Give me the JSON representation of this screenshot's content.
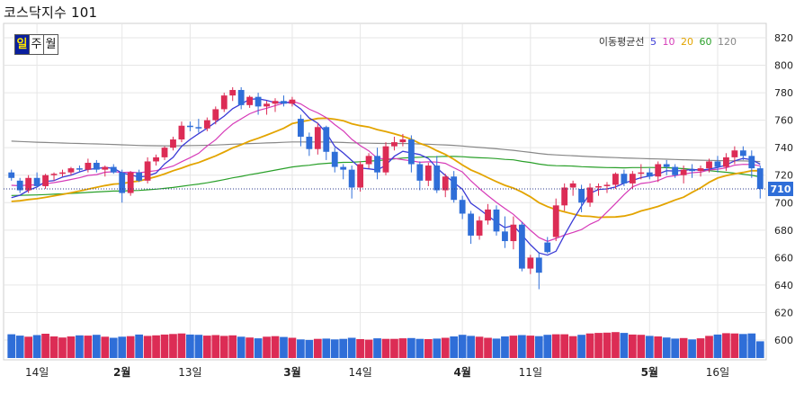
{
  "title": "코스닥지수 101",
  "tabs": [
    {
      "label": "일",
      "active": true
    },
    {
      "label": "주",
      "active": false
    },
    {
      "label": "월",
      "active": false
    }
  ],
  "legend": {
    "label": "이동평균선",
    "items": [
      {
        "name": "5",
        "color": "#3b3bd6"
      },
      {
        "name": "10",
        "color": "#d63ab8"
      },
      {
        "name": "20",
        "color": "#e3a400"
      },
      {
        "name": "60",
        "color": "#2aa02a"
      },
      {
        "name": "120",
        "color": "#888888"
      }
    ]
  },
  "colors": {
    "up": "#dc2c55",
    "down": "#2f6ed8",
    "price_tag": "#2f6ed8"
  },
  "chart_data": {
    "type": "candlestick",
    "ylim": [
      590,
      830
    ],
    "y_ticks": [
      820,
      800,
      780,
      760,
      740,
      720,
      700,
      680,
      660,
      640,
      620,
      600
    ],
    "x_tick_labels": [
      {
        "label": "14일",
        "index": 3,
        "bold": false
      },
      {
        "label": "2월",
        "index": 13,
        "bold": true
      },
      {
        "label": "13일",
        "index": 21,
        "bold": false
      },
      {
        "label": "3월",
        "index": 33,
        "bold": true
      },
      {
        "label": "14일",
        "index": 41,
        "bold": false
      },
      {
        "label": "4월",
        "index": 53,
        "bold": true
      },
      {
        "label": "11일",
        "index": 61,
        "bold": false
      },
      {
        "label": "5월",
        "index": 75,
        "bold": true
      },
      {
        "label": "16일",
        "index": 83,
        "bold": false
      }
    ],
    "current_price": 710,
    "reference_line": 710,
    "ohlc": [
      [
        722,
        724,
        716,
        718
      ],
      [
        716,
        718,
        707,
        709
      ],
      [
        709,
        720,
        707,
        718
      ],
      [
        718,
        722,
        711,
        712
      ],
      [
        712,
        721,
        710,
        720
      ],
      [
        720,
        722,
        716,
        721
      ],
      [
        721,
        724,
        719,
        722
      ],
      [
        722,
        726,
        720,
        725
      ],
      [
        725,
        727,
        722,
        724
      ],
      [
        724,
        732,
        722,
        729
      ],
      [
        729,
        731,
        722,
        724
      ],
      [
        724,
        727,
        719,
        726
      ],
      [
        726,
        728,
        721,
        722
      ],
      [
        722,
        724,
        700,
        707
      ],
      [
        707,
        723,
        705,
        722
      ],
      [
        722,
        724,
        715,
        716
      ],
      [
        716,
        733,
        714,
        730
      ],
      [
        730,
        735,
        727,
        733
      ],
      [
        733,
        741,
        731,
        740
      ],
      [
        740,
        748,
        738,
        746
      ],
      [
        746,
        759,
        744,
        756
      ],
      [
        756,
        759,
        752,
        755
      ],
      [
        755,
        761,
        751,
        754
      ],
      [
        754,
        762,
        752,
        760
      ],
      [
        760,
        770,
        757,
        768
      ],
      [
        768,
        780,
        766,
        778
      ],
      [
        778,
        784,
        774,
        782
      ],
      [
        782,
        784,
        768,
        771
      ],
      [
        771,
        778,
        769,
        777
      ],
      [
        777,
        780,
        764,
        770
      ],
      [
        770,
        774,
        764,
        772
      ],
      [
        772,
        776,
        766,
        774
      ],
      [
        774,
        778,
        770,
        772
      ],
      [
        772,
        777,
        770,
        775
      ],
      [
        761,
        764,
        741,
        748
      ],
      [
        748,
        751,
        734,
        739
      ],
      [
        739,
        758,
        735,
        755
      ],
      [
        755,
        756,
        731,
        737
      ],
      [
        737,
        740,
        722,
        726
      ],
      [
        726,
        728,
        717,
        724
      ],
      [
        724,
        727,
        703,
        711
      ],
      [
        711,
        730,
        708,
        728
      ],
      [
        728,
        736,
        725,
        734
      ],
      [
        734,
        740,
        717,
        722
      ],
      [
        722,
        744,
        720,
        741
      ],
      [
        741,
        748,
        738,
        744
      ],
      [
        744,
        750,
        741,
        746
      ],
      [
        746,
        749,
        722,
        728
      ],
      [
        728,
        730,
        709,
        716
      ],
      [
        716,
        729,
        712,
        727
      ],
      [
        727,
        734,
        707,
        709
      ],
      [
        709,
        721,
        704,
        719
      ],
      [
        719,
        723,
        700,
        702
      ],
      [
        702,
        705,
        688,
        692
      ],
      [
        692,
        694,
        670,
        676
      ],
      [
        676,
        690,
        673,
        687
      ],
      [
        687,
        699,
        684,
        695
      ],
      [
        695,
        698,
        676,
        679
      ],
      [
        679,
        690,
        667,
        672
      ],
      [
        672,
        690,
        666,
        684
      ],
      [
        684,
        686,
        650,
        652
      ],
      [
        652,
        662,
        648,
        660
      ],
      [
        660,
        664,
        637,
        649
      ],
      [
        671,
        675,
        663,
        664
      ],
      [
        675,
        703,
        672,
        698
      ],
      [
        698,
        714,
        694,
        711
      ],
      [
        711,
        716,
        705,
        714
      ],
      [
        710,
        713,
        693,
        700
      ],
      [
        700,
        714,
        697,
        711
      ],
      [
        711,
        714,
        705,
        712
      ],
      [
        712,
        715,
        707,
        713
      ],
      [
        713,
        722,
        710,
        721
      ],
      [
        721,
        724,
        712,
        714
      ],
      [
        714,
        723,
        710,
        721
      ],
      [
        721,
        728,
        717,
        722
      ],
      [
        722,
        725,
        717,
        719
      ],
      [
        719,
        730,
        715,
        728
      ],
      [
        728,
        731,
        720,
        726
      ],
      [
        726,
        728,
        718,
        720
      ],
      [
        720,
        727,
        714,
        724
      ],
      [
        724,
        728,
        718,
        723
      ],
      [
        723,
        727,
        719,
        725
      ],
      [
        725,
        732,
        722,
        730
      ],
      [
        730,
        734,
        722,
        726
      ],
      [
        726,
        736,
        723,
        733
      ],
      [
        733,
        741,
        728,
        738
      ],
      [
        738,
        741,
        731,
        734
      ],
      [
        734,
        738,
        718,
        725
      ],
      [
        725,
        727,
        703,
        710
      ]
    ],
    "volume": [
      0.88,
      0.83,
      0.79,
      0.85,
      0.9,
      0.8,
      0.76,
      0.8,
      0.84,
      0.83,
      0.86,
      0.79,
      0.75,
      0.79,
      0.81,
      0.87,
      0.82,
      0.84,
      0.87,
      0.89,
      0.91,
      0.87,
      0.86,
      0.83,
      0.85,
      0.82,
      0.84,
      0.79,
      0.76,
      0.73,
      0.79,
      0.81,
      0.78,
      0.75,
      0.69,
      0.67,
      0.71,
      0.72,
      0.69,
      0.71,
      0.75,
      0.7,
      0.68,
      0.73,
      0.71,
      0.71,
      0.73,
      0.74,
      0.71,
      0.7,
      0.72,
      0.75,
      0.8,
      0.86,
      0.82,
      0.79,
      0.75,
      0.72,
      0.8,
      0.83,
      0.85,
      0.83,
      0.81,
      0.86,
      0.88,
      0.88,
      0.81,
      0.86,
      0.91,
      0.93,
      0.94,
      0.96,
      0.93,
      0.87,
      0.86,
      0.82,
      0.8,
      0.76,
      0.72,
      0.74,
      0.69,
      0.73,
      0.82,
      0.87,
      0.92,
      0.91,
      0.89,
      0.91,
      0.62
    ]
  }
}
